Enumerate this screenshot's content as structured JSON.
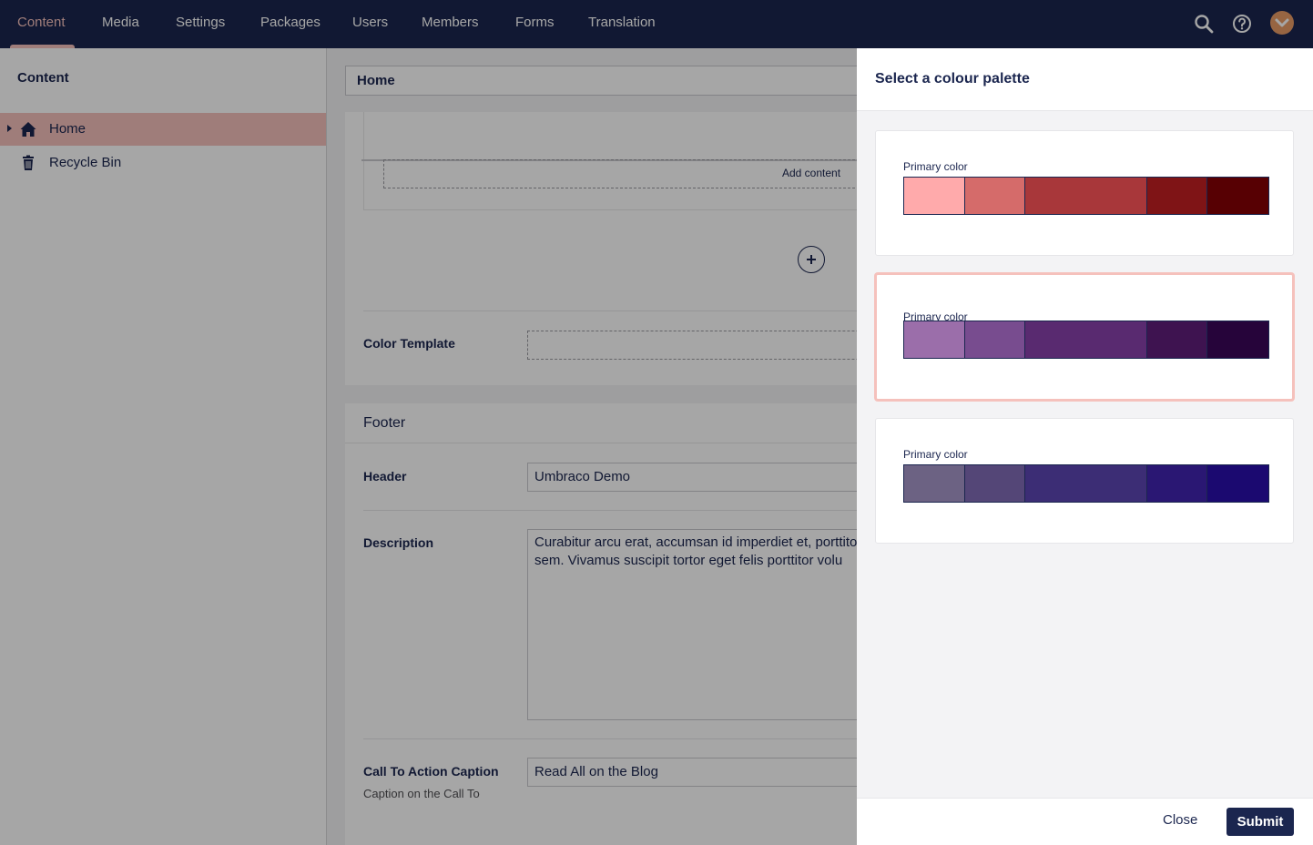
{
  "nav": {
    "items": [
      {
        "label": "Content",
        "active": true
      },
      {
        "label": "Media"
      },
      {
        "label": "Settings"
      },
      {
        "label": "Packages"
      },
      {
        "label": "Users"
      },
      {
        "label": "Members"
      },
      {
        "label": "Forms"
      },
      {
        "label": "Translation"
      }
    ],
    "icons": [
      "search-icon",
      "help-icon",
      "user-avatar"
    ],
    "colors": {
      "bar": "#1b264f",
      "active": "#f5c1bc"
    }
  },
  "sidebar": {
    "title": "Content",
    "items": [
      {
        "label": "Home",
        "icon": "home-icon",
        "selected": true
      },
      {
        "label": "Recycle Bin",
        "icon": "trash-icon"
      }
    ]
  },
  "editor": {
    "header_value": "Home",
    "add_content_label": "Add content",
    "color_template_label": "Color Template",
    "footer": {
      "title": "Footer",
      "header_label": "Header",
      "header_value": "Umbraco Demo",
      "description_label": "Description",
      "description_value": "Curabitur arcu erat, accumsan id imperdiet et, porttitor at sem. Vivamus suscipit tortor eget felis porttitor volu",
      "cta_label": "Call To Action Caption",
      "cta_desc": "Caption on the Call To",
      "cta_value": "Read All on the Blog"
    }
  },
  "panel": {
    "title": "Select a colour palette",
    "palettes": [
      {
        "label": "Primary color",
        "selected": false,
        "colors": [
          "#ffaaab",
          "#d56b6a",
          "#a8373a",
          "#7f1416",
          "#570003"
        ]
      },
      {
        "label": "Primary color",
        "selected": true,
        "colors": [
          "#9b6eaa",
          "#784c8f",
          "#592a70",
          "#3e1350",
          "#26043a"
        ]
      },
      {
        "label": "Primary color",
        "selected": false,
        "colors": [
          "#6c6283",
          "#544677",
          "#3c2d75",
          "#2a1773",
          "#1b0970"
        ]
      }
    ],
    "close_label": "Close",
    "submit_label": "Submit"
  }
}
